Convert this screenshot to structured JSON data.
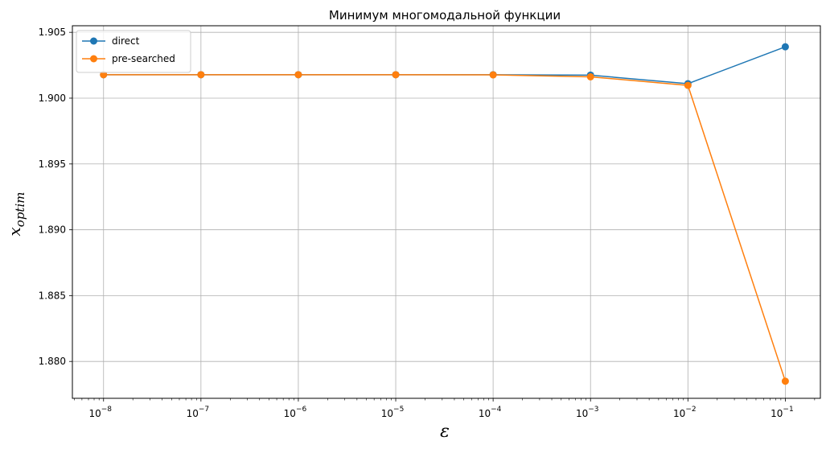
{
  "chart_data": {
    "type": "line",
    "title": "Минимум многомодальной функции",
    "xlabel": "ε",
    "ylabel_base": "x",
    "ylabel_sub": "optim",
    "x_scale": "log",
    "x": [
      1e-08,
      1e-07,
      1e-06,
      1e-05,
      0.0001,
      0.001,
      0.01,
      0.1
    ],
    "x_tick_labels": [
      {
        "base": "10",
        "exp": "−8"
      },
      {
        "base": "10",
        "exp": "−7"
      },
      {
        "base": "10",
        "exp": "−6"
      },
      {
        "base": "10",
        "exp": "−5"
      },
      {
        "base": "10",
        "exp": "−4"
      },
      {
        "base": "10",
        "exp": "−3"
      },
      {
        "base": "10",
        "exp": "−2"
      },
      {
        "base": "10",
        "exp": "−1"
      }
    ],
    "ylim": [
      1.8772,
      1.9055
    ],
    "y_ticks": [
      1.88,
      1.885,
      1.89,
      1.895,
      1.9,
      1.905
    ],
    "y_tick_labels": [
      "1.880",
      "1.885",
      "1.890",
      "1.895",
      "1.900",
      "1.905"
    ],
    "grid": true,
    "legend_position": "top-left",
    "series": [
      {
        "name": "direct",
        "color": "#1f77b4",
        "values": [
          1.90178,
          1.90178,
          1.90178,
          1.90178,
          1.90178,
          1.90175,
          1.9011,
          1.9039
        ]
      },
      {
        "name": "pre-searched",
        "color": "#ff7f0e",
        "values": [
          1.90178,
          1.90178,
          1.90178,
          1.90178,
          1.90177,
          1.90162,
          1.90097,
          1.8785
        ]
      }
    ]
  }
}
